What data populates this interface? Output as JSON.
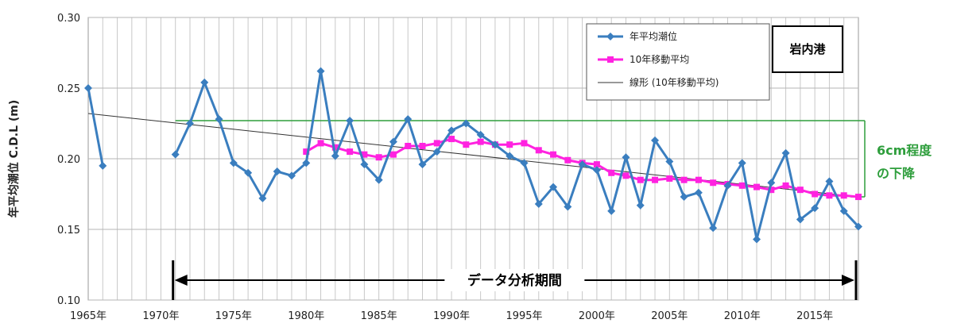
{
  "chart_data": {
    "type": "line",
    "ylabel": "年平均潮位 C.D.L (m)",
    "ylim": [
      0.1,
      0.3
    ],
    "yticks": [
      "0.10",
      "0.15",
      "0.20",
      "0.25",
      "0.30"
    ],
    "xlim": [
      1965,
      2018
    ],
    "xticks": [
      "1965年",
      "1970年",
      "1975年",
      "1980年",
      "1985年",
      "1990年",
      "1995年",
      "2000年",
      "2005年",
      "2010年",
      "2015年"
    ],
    "grid": true,
    "legend_position": "top-right",
    "station_label": "岩内港",
    "series": [
      {
        "name": "年平均潮位",
        "color": "#3a7ebf",
        "marker": "diamond",
        "segments": [
          [
            [
              1965,
              0.25
            ],
            [
              1966,
              0.195
            ]
          ],
          [
            [
              1971,
              0.203
            ],
            [
              1972,
              0.225
            ],
            [
              1973,
              0.254
            ],
            [
              1974,
              0.228
            ],
            [
              1975,
              0.197
            ],
            [
              1976,
              0.19
            ],
            [
              1977,
              0.172
            ],
            [
              1978,
              0.191
            ],
            [
              1979,
              0.188
            ],
            [
              1980,
              0.197
            ],
            [
              1981,
              0.262
            ],
            [
              1982,
              0.202
            ],
            [
              1983,
              0.227
            ],
            [
              1984,
              0.196
            ],
            [
              1985,
              0.185
            ],
            [
              1986,
              0.212
            ],
            [
              1987,
              0.228
            ],
            [
              1988,
              0.196
            ],
            [
              1989,
              0.205
            ],
            [
              1990,
              0.22
            ],
            [
              1991,
              0.225
            ],
            [
              1992,
              0.217
            ],
            [
              1993,
              0.21
            ],
            [
              1994,
              0.202
            ],
            [
              1995,
              0.197
            ],
            [
              1996,
              0.168
            ],
            [
              1997,
              0.18
            ],
            [
              1998,
              0.166
            ],
            [
              1999,
              0.196
            ],
            [
              2000,
              0.192
            ],
            [
              2001,
              0.163
            ],
            [
              2002,
              0.201
            ],
            [
              2003,
              0.167
            ],
            [
              2004,
              0.213
            ],
            [
              2005,
              0.198
            ],
            [
              2006,
              0.173
            ],
            [
              2007,
              0.176
            ],
            [
              2008,
              0.151
            ],
            [
              2009,
              0.181
            ],
            [
              2010,
              0.197
            ],
            [
              2011,
              0.143
            ],
            [
              2012,
              0.183
            ],
            [
              2013,
              0.204
            ],
            [
              2014,
              0.157
            ],
            [
              2015,
              0.165
            ],
            [
              2016,
              0.184
            ],
            [
              2017,
              0.163
            ],
            [
              2018,
              0.152
            ]
          ]
        ]
      },
      {
        "name": "10年移動平均",
        "color": "#ff22e0",
        "marker": "square",
        "points": [
          [
            1980,
            0.205
          ],
          [
            1981,
            0.211
          ],
          [
            1982,
            0.208
          ],
          [
            1983,
            0.205
          ],
          [
            1984,
            0.203
          ],
          [
            1985,
            0.201
          ],
          [
            1986,
            0.203
          ],
          [
            1987,
            0.209
          ],
          [
            1988,
            0.209
          ],
          [
            1989,
            0.211
          ],
          [
            1990,
            0.214
          ],
          [
            1991,
            0.21
          ],
          [
            1992,
            0.212
          ],
          [
            1993,
            0.21
          ],
          [
            1994,
            0.21
          ],
          [
            1995,
            0.211
          ],
          [
            1996,
            0.206
          ],
          [
            1997,
            0.203
          ],
          [
            1998,
            0.199
          ],
          [
            1999,
            0.197
          ],
          [
            2000,
            0.196
          ],
          [
            2001,
            0.19
          ],
          [
            2002,
            0.188
          ],
          [
            2003,
            0.185
          ],
          [
            2004,
            0.185
          ],
          [
            2005,
            0.186
          ],
          [
            2006,
            0.185
          ],
          [
            2007,
            0.185
          ],
          [
            2008,
            0.183
          ],
          [
            2009,
            0.182
          ],
          [
            2010,
            0.181
          ],
          [
            2011,
            0.18
          ],
          [
            2012,
            0.178
          ],
          [
            2013,
            0.181
          ],
          [
            2014,
            0.178
          ],
          [
            2015,
            0.175
          ],
          [
            2016,
            0.174
          ],
          [
            2017,
            0.174
          ],
          [
            2018,
            0.173
          ]
        ]
      },
      {
        "name": "線形 (10年移動平均)",
        "color": "#333333",
        "marker": "none",
        "points": [
          [
            1965,
            0.232
          ],
          [
            2018,
            0.173
          ]
        ]
      }
    ],
    "annotations": {
      "drop_text_line1": "6cm程度",
      "drop_text_line2": "の下降",
      "drop_color": "#2e9e3c",
      "drop_from": [
        1971,
        0.227
      ],
      "drop_to": [
        2018,
        0.173
      ],
      "period_label": "データ分析期間",
      "period_from": 1971,
      "period_to": 2018
    }
  }
}
